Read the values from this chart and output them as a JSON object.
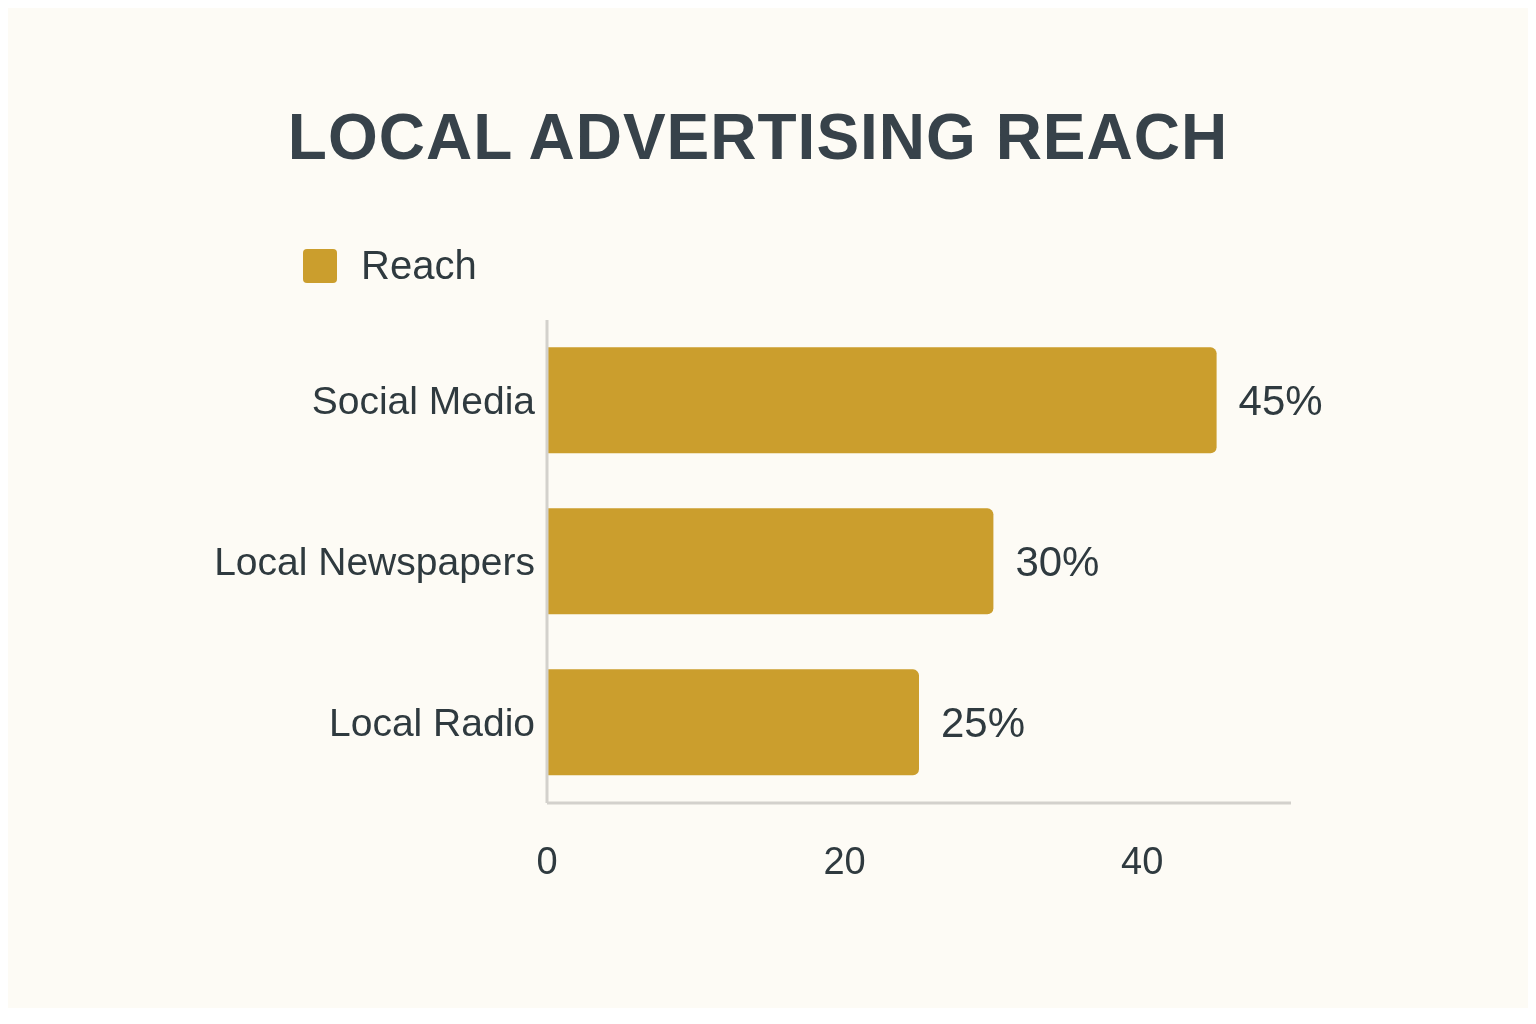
{
  "chart_data": {
    "type": "bar",
    "title": "LOCAL ADVERTISING REACH",
    "orientation": "horizontal",
    "categories": [
      "Social Media",
      "Local Newspapers",
      "Local Radio"
    ],
    "series": [
      {
        "name": "Reach",
        "color": "#cb9e2d",
        "values": [
          45,
          30,
          25
        ],
        "value_labels": [
          "45%",
          "30%",
          "25%"
        ]
      }
    ],
    "xlim": [
      0,
      50
    ],
    "xticks": [
      0,
      20,
      40
    ],
    "legend": "top left"
  }
}
